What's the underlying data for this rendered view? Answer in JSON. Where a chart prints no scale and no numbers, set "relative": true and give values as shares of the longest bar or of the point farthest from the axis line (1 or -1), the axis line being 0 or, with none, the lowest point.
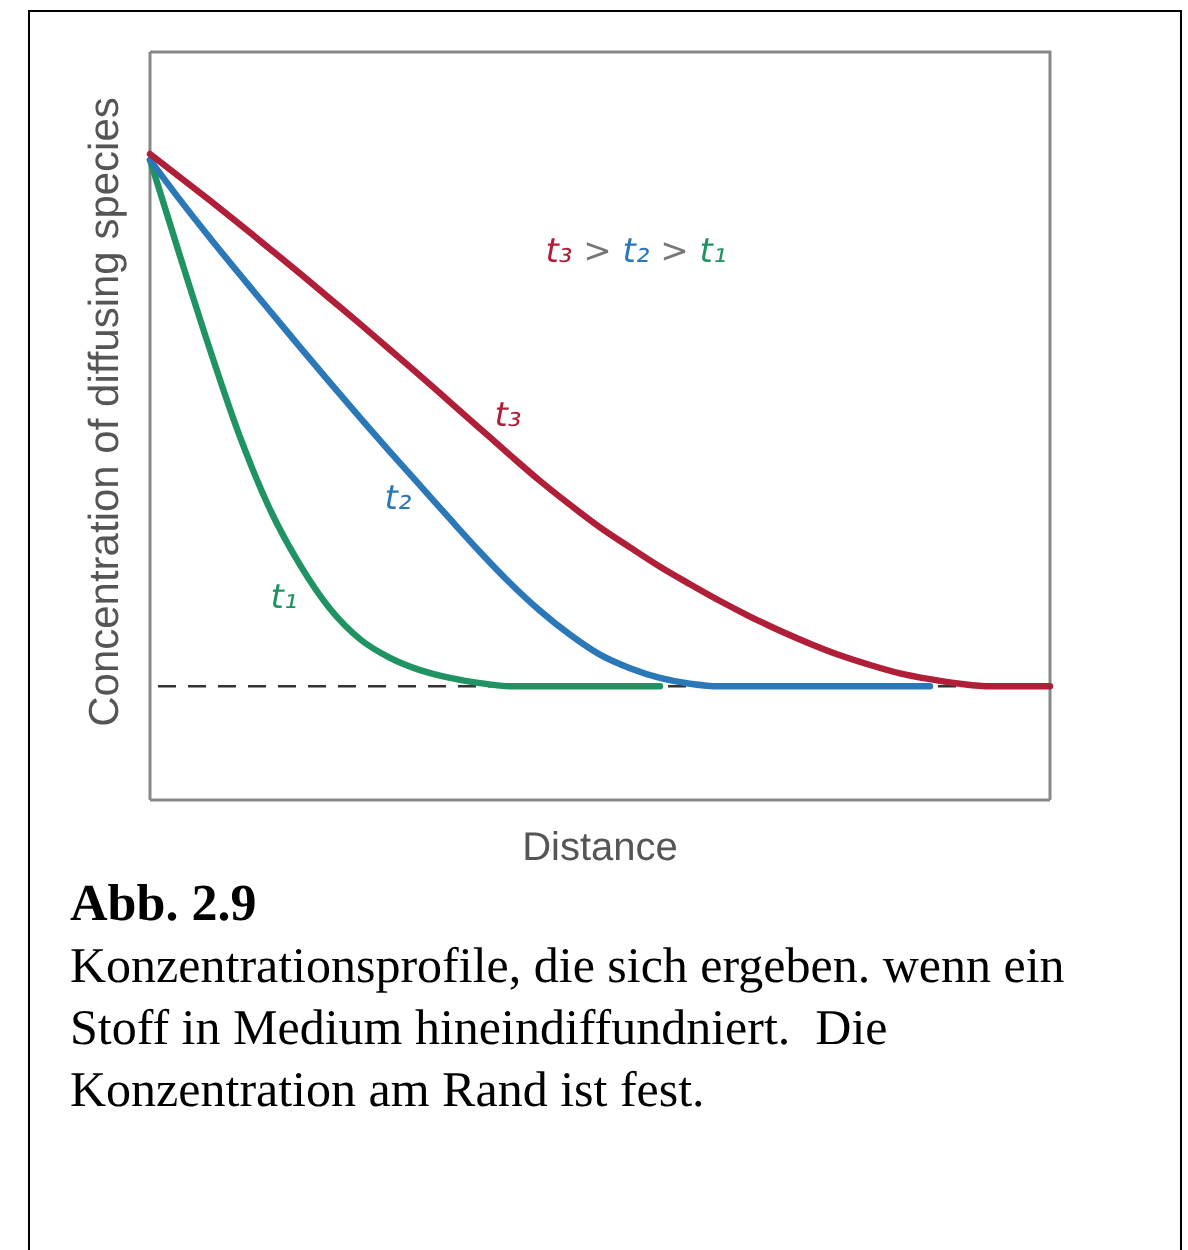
{
  "chart_data": {
    "type": "line",
    "relative": true,
    "xlabel": "Distance",
    "ylabel": "Concentration of diffusing species",
    "categories": [
      null,
      null,
      null,
      null,
      null,
      null,
      null,
      null,
      null,
      null,
      null,
      null,
      null,
      null,
      null,
      null,
      null,
      null,
      null,
      null,
      null,
      null,
      null,
      null,
      null,
      null,
      null,
      null,
      null,
      null,
      null
    ],
    "series": [
      {
        "name": "t₁",
        "color": "#1f9462",
        "values": [
          0.991,
          0.842,
          0.697,
          0.562,
          0.45,
          0.364,
          0.296,
          0.249,
          0.22,
          0.201,
          0.189,
          0.181,
          0.176,
          0.176,
          0.176,
          0.176,
          0.176,
          0.176,
          null,
          null,
          null,
          null,
          null,
          null,
          null,
          null,
          null,
          null,
          null,
          null,
          null
        ]
      },
      {
        "name": "t₂",
        "color": "#2b78b8",
        "values": [
          0.991,
          0.929,
          0.87,
          0.813,
          0.757,
          0.701,
          0.646,
          0.592,
          0.539,
          0.487,
          0.435,
          0.384,
          0.336,
          0.293,
          0.256,
          0.225,
          0.204,
          0.189,
          0.18,
          0.176,
          0.176,
          0.176,
          0.176,
          0.176,
          0.176,
          0.176,
          0.176,
          null,
          null,
          null,
          null
        ]
      },
      {
        "name": "t₃",
        "color": "#b01e38",
        "values": [
          1.0,
          0.964,
          0.928,
          0.891,
          0.853,
          0.815,
          0.776,
          0.737,
          0.697,
          0.657,
          0.616,
          0.575,
          0.534,
          0.494,
          0.457,
          0.422,
          0.391,
          0.361,
          0.334,
          0.308,
          0.284,
          0.262,
          0.242,
          0.224,
          0.209,
          0.196,
          0.187,
          0.18,
          0.176,
          0.176,
          0.176
        ]
      }
    ],
    "ref_lines": [
      {
        "axis": "y",
        "value": 0.176,
        "line_style": "dashed",
        "color": "#333333"
      }
    ],
    "annotations": [
      "t₃ > t₂ > t₁",
      "Abb. 2.9",
      "Konzentrationsprofile, die sich ergeben. wenn ein Stoff in Medium hineindiffundniert.  Die Konzentration am Rand ist fest."
    ]
  }
}
